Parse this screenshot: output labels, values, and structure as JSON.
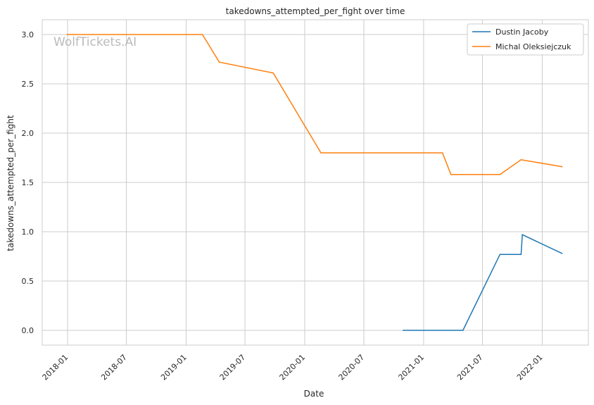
{
  "watermark": "WolfTickets.AI",
  "chart_data": {
    "type": "line",
    "title": "takedowns_attempted_per_fight over time",
    "xlabel": "Date",
    "ylabel": "takedowns_attempted_per_fight",
    "xlim": [
      "2017-09-01",
      "2022-06-01"
    ],
    "ylim": [
      -0.15,
      3.15
    ],
    "x_ticks": [
      "2018-01",
      "2018-07",
      "2019-01",
      "2019-07",
      "2020-01",
      "2020-07",
      "2021-01",
      "2021-07",
      "2022-01"
    ],
    "y_ticks": [
      "0.0",
      "0.5",
      "1.0",
      "1.5",
      "2.0",
      "2.5",
      "3.0"
    ],
    "grid": true,
    "legend_position": "top-right",
    "series": [
      {
        "name": "Dustin Jacoby",
        "color": "#1f77b4",
        "x": [
          "2020-10-30",
          "2021-05-02",
          "2021-08-24",
          "2021-10-28",
          "2021-11-01",
          "2022-03-03"
        ],
        "y": [
          0.0,
          0.0,
          0.77,
          0.77,
          0.97,
          0.78
        ]
      },
      {
        "name": "Michal Oleksiejczuk",
        "color": "#ff7f0e",
        "x": [
          "2017-12-30",
          "2019-02-20",
          "2019-04-13",
          "2019-09-26",
          "2020-02-20",
          "2021-02-28",
          "2021-03-26",
          "2021-08-24",
          "2021-10-28",
          "2022-03-03"
        ],
        "y": [
          3.0,
          3.0,
          2.72,
          2.61,
          1.8,
          1.8,
          1.58,
          1.58,
          1.73,
          1.66
        ]
      }
    ]
  }
}
